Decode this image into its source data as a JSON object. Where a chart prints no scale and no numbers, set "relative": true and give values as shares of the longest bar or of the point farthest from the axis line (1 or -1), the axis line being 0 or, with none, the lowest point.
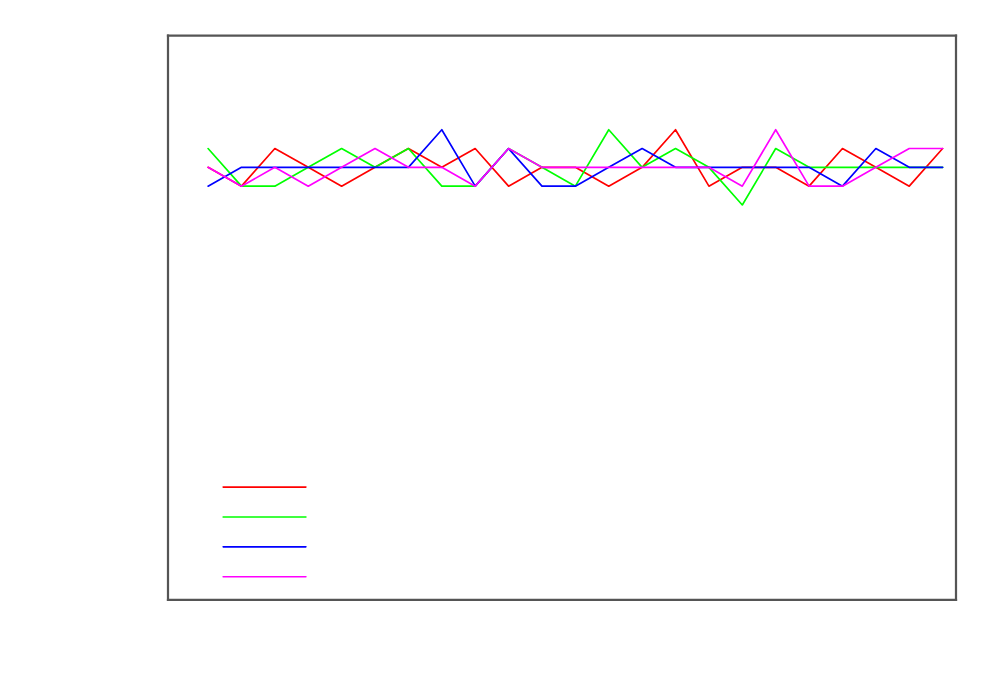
{
  "chart_data": {
    "type": "line",
    "relative": true,
    "categories": [
      null,
      null,
      null,
      null,
      null,
      null,
      null,
      null,
      null,
      null,
      null,
      null,
      null,
      null,
      null,
      null,
      null,
      null,
      null,
      null,
      null,
      null,
      null
    ],
    "series": [
      {
        "color": "#ff0000",
        "values": [
          0.92,
          0.88,
          0.96,
          0.92,
          0.88,
          0.92,
          0.96,
          0.92,
          0.96,
          0.88,
          0.92,
          0.92,
          0.88,
          0.92,
          1,
          0.88,
          0.92,
          0.92,
          0.88,
          0.96,
          0.92,
          0.88,
          0.96
        ]
      },
      {
        "color": "#00ff00",
        "values": [
          0.96,
          0.88,
          0.88,
          0.92,
          0.96,
          0.92,
          0.96,
          0.88,
          0.88,
          0.96,
          0.92,
          0.88,
          1,
          0.92,
          0.96,
          0.92,
          0.84,
          0.96,
          0.92,
          0.92,
          0.92,
          0.92,
          0.92
        ]
      },
      {
        "color": "#0000ff",
        "values": [
          0.88,
          0.92,
          0.92,
          0.92,
          0.92,
          0.92,
          0.92,
          1,
          0.88,
          0.96,
          0.88,
          0.88,
          0.92,
          0.96,
          0.92,
          0.92,
          0.92,
          0.92,
          0.92,
          0.88,
          0.96,
          0.92,
          0.92
        ]
      },
      {
        "color": "#ff00ff",
        "values": [
          0.92,
          0.88,
          0.92,
          0.88,
          0.92,
          0.96,
          0.92,
          0.92,
          0.88,
          0.96,
          0.92,
          0.92,
          0.92,
          0.92,
          0.92,
          0.92,
          0.88,
          1,
          0.88,
          0.88,
          0.92,
          0.96,
          0.96
        ]
      }
    ]
  }
}
